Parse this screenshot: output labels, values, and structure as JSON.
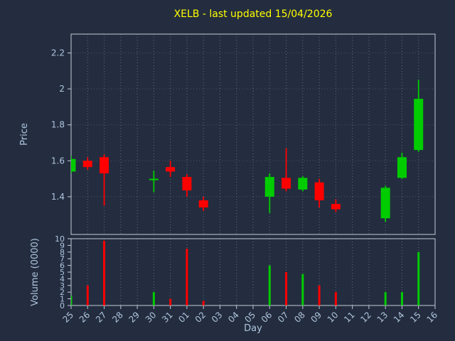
{
  "colors": {
    "background": "#232d3f",
    "title": "#ffff00",
    "tick_text": "#b0c4de",
    "spine": "#c3cbd5",
    "grid": "#aabbcc",
    "up": "#00cc00",
    "down": "#ff0000"
  },
  "chart_data": {
    "type": "candlestick",
    "title": "XELB - last updated 15/04/2026",
    "xlabel": "Day",
    "price_ylabel": "Price",
    "volume_ylabel": "Volume (0000)",
    "days": [
      "25",
      "26",
      "27",
      "28",
      "29",
      "30",
      "31",
      "01",
      "02",
      "03",
      "04",
      "05",
      "06",
      "07",
      "08",
      "09",
      "10",
      "11",
      "12",
      "13",
      "14",
      "15",
      "16"
    ],
    "price_ylim": [
      1.19,
      2.305
    ],
    "volume_ylim": [
      0,
      10
    ],
    "price_ticks": [
      {
        "label": "2.2",
        "v": 2.2
      },
      {
        "label": "2",
        "v": 2.0
      },
      {
        "label": "1.8",
        "v": 1.8
      },
      {
        "label": "1.6",
        "v": 1.6
      },
      {
        "label": "1.4",
        "v": 1.4
      }
    ],
    "volume_ticks": [
      {
        "label": "10",
        "v": 10
      },
      {
        "label": "9",
        "v": 9
      },
      {
        "label": "8",
        "v": 8
      },
      {
        "label": "7",
        "v": 7
      },
      {
        "label": "6",
        "v": 6
      },
      {
        "label": "5",
        "v": 5
      },
      {
        "label": "4",
        "v": 4
      },
      {
        "label": "3",
        "v": 3
      },
      {
        "label": "2",
        "v": 2
      },
      {
        "label": "1",
        "v": 1
      },
      {
        "label": "0",
        "v": 0
      }
    ],
    "grid": "dotted-vertical-and-horizontal",
    "candles": [
      {
        "day": "25",
        "open": 1.54,
        "high": 1.63,
        "low": 1.53,
        "close": 1.61,
        "volume": 1.5
      },
      {
        "day": "26",
        "open": 1.6,
        "high": 1.62,
        "low": 1.55,
        "close": 1.565,
        "volume": 3.0
      },
      {
        "day": "27",
        "open": 1.62,
        "high": 1.635,
        "low": 1.35,
        "close": 1.53,
        "volume": 9.7
      },
      {
        "day": "30",
        "open": 1.495,
        "high": 1.545,
        "low": 1.425,
        "close": 1.5,
        "volume": 2.0
      },
      {
        "day": "31",
        "open": 1.565,
        "high": 1.6,
        "low": 1.51,
        "close": 1.54,
        "volume": 1.0
      },
      {
        "day": "01",
        "open": 1.51,
        "high": 1.525,
        "low": 1.4,
        "close": 1.435,
        "volume": 8.5
      },
      {
        "day": "02",
        "open": 1.38,
        "high": 1.4,
        "low": 1.32,
        "close": 1.34,
        "volume": 0.7
      },
      {
        "day": "06",
        "open": 1.4,
        "high": 1.53,
        "low": 1.31,
        "close": 1.51,
        "volume": 6.0
      },
      {
        "day": "07",
        "open": 1.505,
        "high": 1.67,
        "low": 1.43,
        "close": 1.445,
        "volume": 5.0
      },
      {
        "day": "08",
        "open": 1.44,
        "high": 1.515,
        "low": 1.43,
        "close": 1.505,
        "volume": 4.7
      },
      {
        "day": "09",
        "open": 1.48,
        "high": 1.5,
        "low": 1.34,
        "close": 1.38,
        "volume": 3.0
      },
      {
        "day": "10",
        "open": 1.36,
        "high": 1.385,
        "low": 1.315,
        "close": 1.33,
        "volume": 2.0
      },
      {
        "day": "13",
        "open": 1.28,
        "high": 1.46,
        "low": 1.26,
        "close": 1.45,
        "volume": 2.0
      },
      {
        "day": "14",
        "open": 1.505,
        "high": 1.645,
        "low": 1.5,
        "close": 1.62,
        "volume": 2.0
      },
      {
        "day": "15",
        "open": 1.66,
        "high": 2.05,
        "low": 1.65,
        "close": 1.945,
        "volume": 8.0
      }
    ]
  }
}
